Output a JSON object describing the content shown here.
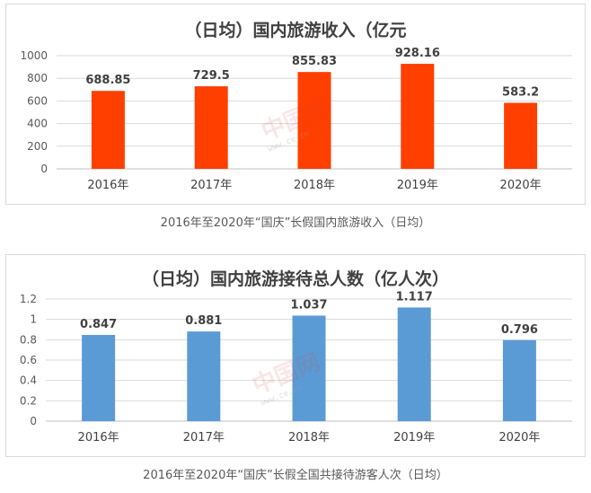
{
  "chart_data": [
    {
      "type": "bar",
      "title": "（日均）国内旅游收入（亿元",
      "categories": [
        "2016年",
        "2017年",
        "2018年",
        "2019年",
        "2020年"
      ],
      "values": [
        688.85,
        729.5,
        855.83,
        928.16,
        583.2
      ],
      "value_labels": [
        "688.85",
        "729.5",
        "855.83",
        "928.16",
        "583.2"
      ],
      "ylim": [
        0,
        1000
      ],
      "yticks": [
        0,
        200,
        400,
        600,
        800,
        1000
      ],
      "ytick_labels": [
        "0",
        "200",
        "400",
        "600",
        "800",
        "1000"
      ],
      "grid": true,
      "color": "#ff3f00",
      "caption": "2016年至2020年“国庆”长假国内旅游收入（日均）"
    },
    {
      "type": "bar",
      "title": "（日均）国内旅游接待总人数（亿人次）",
      "categories": [
        "2016年",
        "2017年",
        "2018年",
        "2019年",
        "2020年"
      ],
      "values": [
        0.847,
        0.881,
        1.037,
        1.117,
        0.796
      ],
      "value_labels": [
        "0.847",
        "0.881",
        "1.037",
        "1.117",
        "0.796"
      ],
      "ylim": [
        0,
        1.2
      ],
      "yticks": [
        0,
        0.2,
        0.4,
        0.6,
        0.8,
        1,
        1.2
      ],
      "ytick_labels": [
        "0",
        "0.2",
        "0.4",
        "0.6",
        "0.8",
        "1",
        "1.2"
      ],
      "grid": true,
      "color": "#5b9bd5",
      "caption": "2016年至2020年“国庆”长假全国共接待游客人次（日均）"
    }
  ],
  "watermark": {
    "text": "中国网",
    "subtext": "文化产业频道",
    "url": "www.ce.cn"
  }
}
